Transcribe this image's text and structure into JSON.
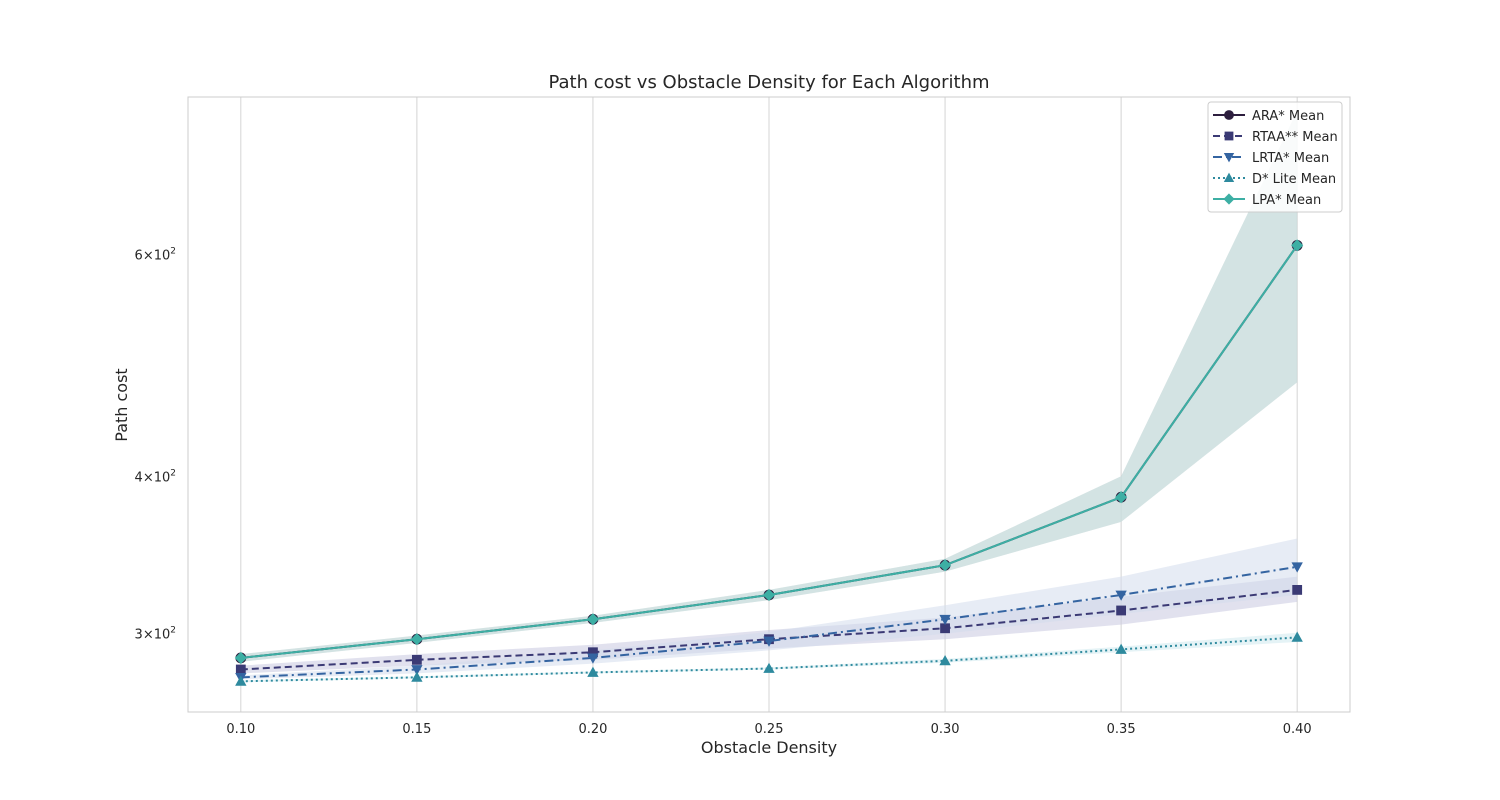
{
  "chart_data": {
    "type": "line",
    "title": "Path cost vs Obstacle Density for Each Algorithm",
    "xlabel": "Obstacle Density",
    "ylabel": "Path cost",
    "x": [
      0.1,
      0.15,
      0.2,
      0.25,
      0.3,
      0.35,
      0.4
    ],
    "x_tick_labels": [
      "0.10",
      "0.15",
      "0.20",
      "0.25",
      "0.30",
      "0.35",
      "0.40"
    ],
    "xlim": [
      0.085,
      0.415
    ],
    "ylim": [
      260,
      800
    ],
    "y_scale": "log",
    "y_ticks": [
      {
        "value": 300,
        "base": "3×10",
        "exp": "2"
      },
      {
        "value": 400,
        "base": "4×10",
        "exp": "2"
      },
      {
        "value": 600,
        "base": "6×10",
        "exp": "2"
      }
    ],
    "grid": "vertical",
    "legend_position": "top-right",
    "series": [
      {
        "name": "ARA* Mean",
        "color": "#2d1e3e",
        "dash": "solid",
        "marker": "circle",
        "values": [
          287,
          297,
          308,
          322,
          340,
          385,
          610
        ],
        "band_low": [
          285,
          295,
          306,
          319,
          336,
          368,
          475
        ],
        "band_high": [
          289,
          299,
          310,
          325,
          344,
          400,
          780
        ]
      },
      {
        "name": "RTAA** Mean",
        "color": "#3b3a75",
        "dash": "dashed",
        "marker": "square",
        "values": [
          281,
          286,
          290,
          297,
          303,
          313,
          325
        ],
        "band_low": [
          279,
          283,
          286,
          292,
          297,
          305,
          318
        ],
        "band_high": [
          283,
          289,
          294,
          302,
          309,
          321,
          333
        ]
      },
      {
        "name": "LRTA* Mean",
        "color": "#3464a1",
        "dash": "dashdot",
        "marker": "triangle-down",
        "values": [
          277,
          281,
          287,
          296,
          308,
          322,
          339
        ],
        "band_low": [
          276,
          279,
          284,
          291,
          300,
          311,
          322
        ],
        "band_high": [
          278,
          283,
          291,
          301,
          316,
          333,
          357
        ]
      },
      {
        "name": "D* Lite Mean",
        "color": "#2e8a9e",
        "dash": "dotted",
        "marker": "triangle-up",
        "values": [
          275,
          277,
          279.5,
          281.5,
          285.5,
          291.5,
          298
        ],
        "band_low": [
          274.5,
          276.5,
          279,
          281,
          284.5,
          290,
          295.5
        ],
        "band_high": [
          275.5,
          277.5,
          280,
          282,
          286.5,
          293,
          300.5
        ]
      },
      {
        "name": "LPA* Mean",
        "color": "#3dafa4",
        "dash": "solid",
        "marker": "diamond",
        "values": [
          287,
          297,
          308,
          322,
          340,
          385,
          610
        ],
        "band_low": [
          285,
          295,
          306,
          319,
          336,
          368,
          475
        ],
        "band_high": [
          289,
          299,
          310,
          325,
          344,
          400,
          780
        ]
      }
    ],
    "band_colors": {
      "ARA* Mean": "#c8d8d8",
      "RTAA** Mean": "#c9c9e0",
      "LRTA* Mean": "#d4ddec",
      "D* Lite Mean": "#cfe9ef",
      "LPA* Mean": "#c8dcdc"
    }
  }
}
